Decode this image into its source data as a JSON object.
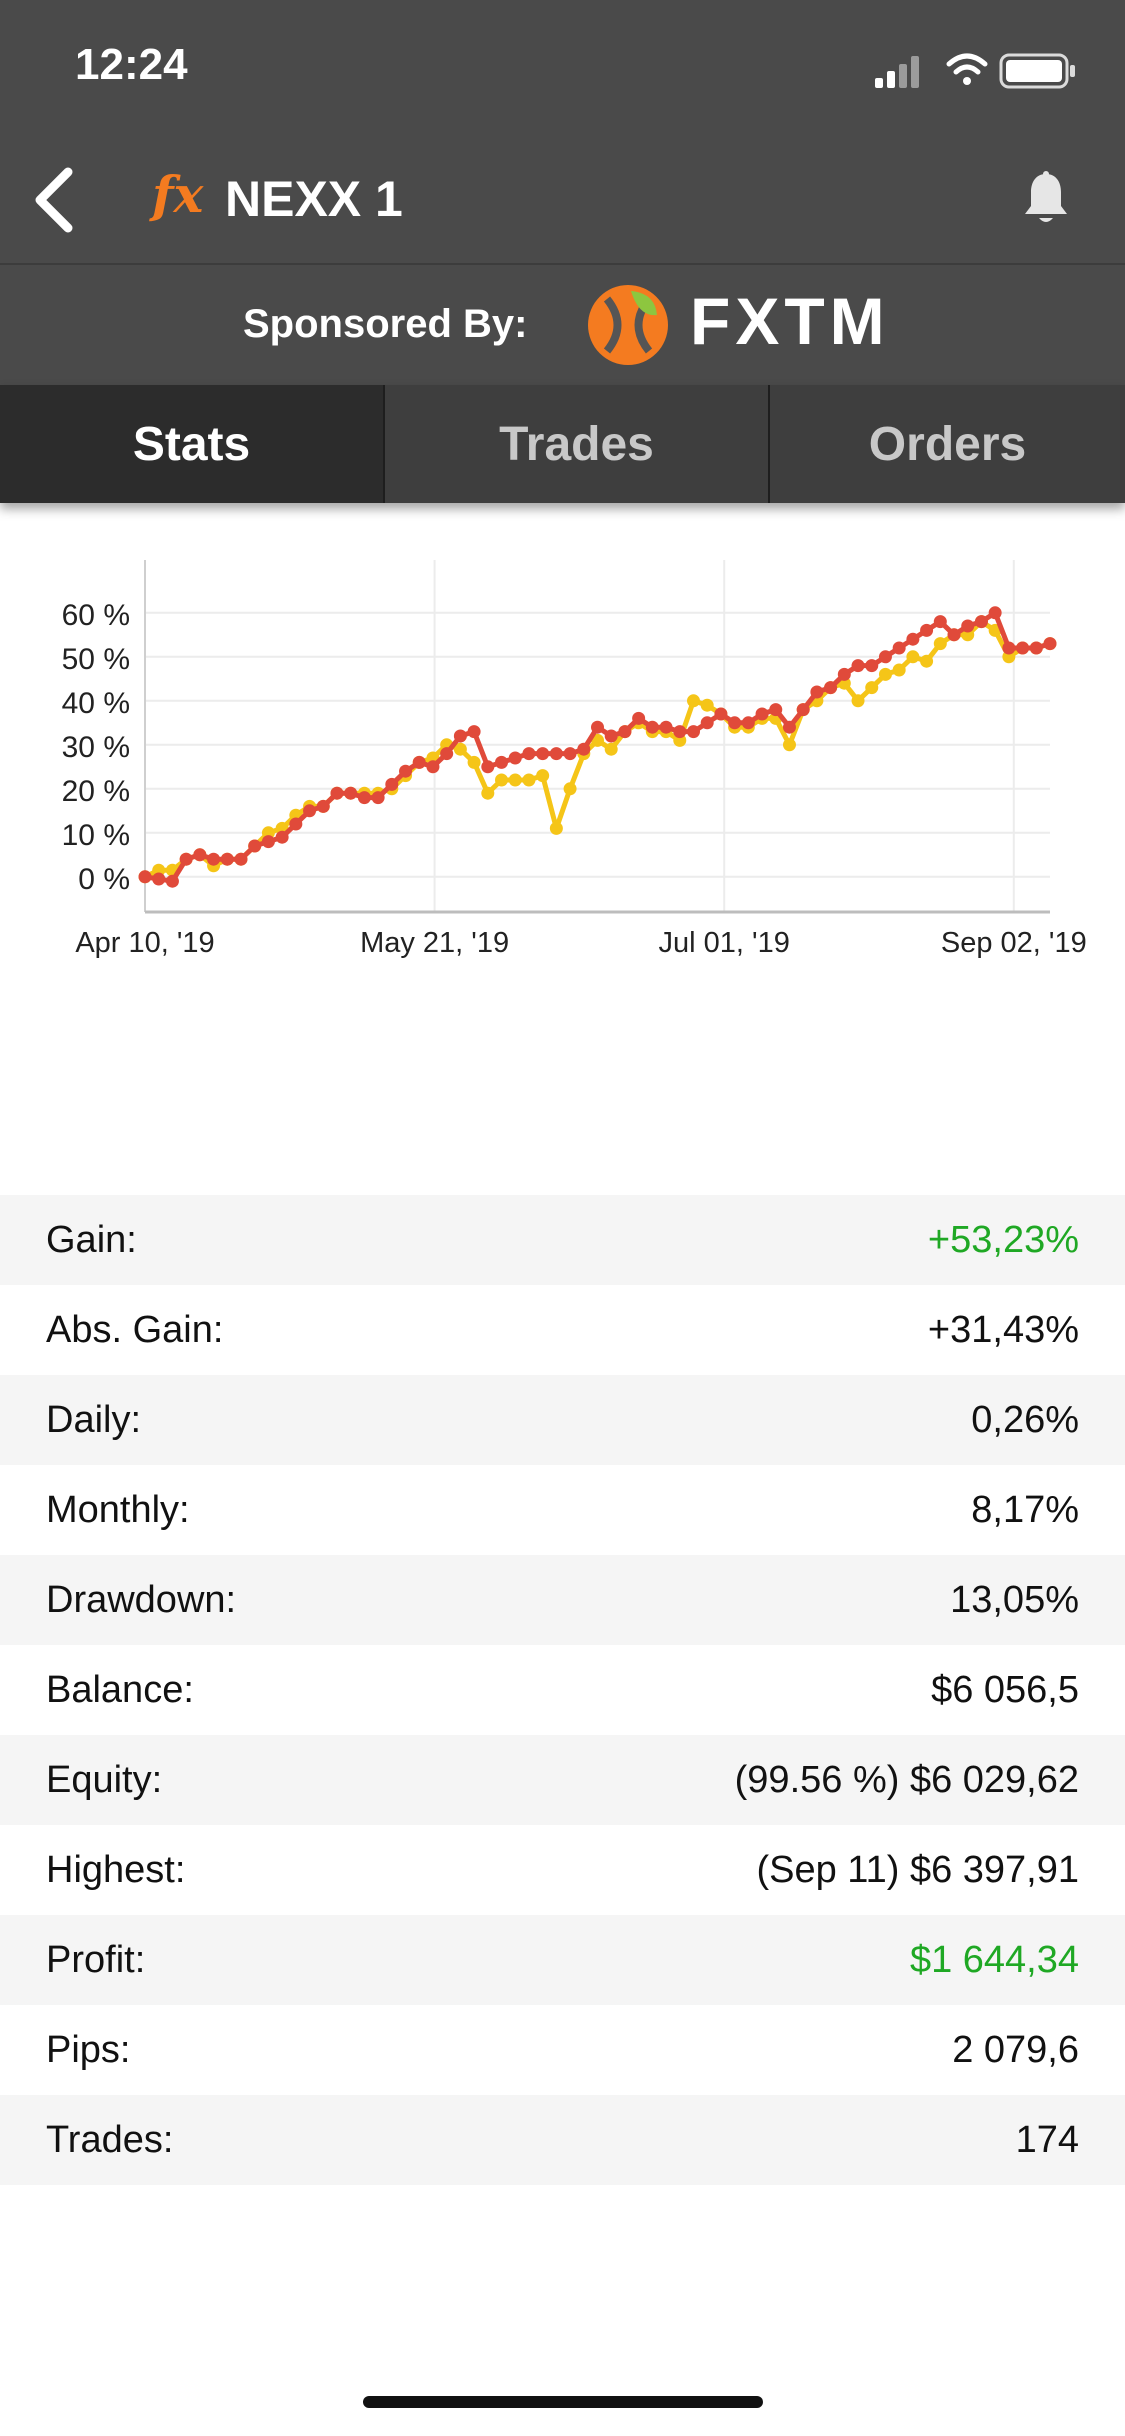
{
  "status": {
    "time": "12:24"
  },
  "nav": {
    "title": "NEXX 1",
    "fx_logo": "fx",
    "back_icon": "chevron-left-icon",
    "bell_icon": "bell-icon"
  },
  "sponsor": {
    "label": "Sponsored By:",
    "name": "FXTM"
  },
  "tabs": [
    {
      "label": "Stats"
    },
    {
      "label": "Trades"
    },
    {
      "label": "Orders"
    }
  ],
  "colors": {
    "header": "#4a4a4a",
    "series_red": "#e04a3a",
    "series_yellow": "#f5c518",
    "green": "#1fa824",
    "brand_orange": "#f47b20"
  },
  "chart_data": {
    "type": "line",
    "x_ticks": [
      "Apr 10, '19",
      "May 21, '19",
      "Jul 01, '19",
      "Sep 02, '19"
    ],
    "y_ticks": [
      "60 %",
      "50 %",
      "40 %",
      "30 %",
      "20 %",
      "10 %",
      "0 %"
    ],
    "ylim": [
      -8,
      72
    ],
    "grid": true,
    "series": [
      {
        "color": "#f5c518",
        "values": [
          0,
          1.5,
          1.5,
          4,
          5,
          2.5,
          4,
          4,
          7,
          10,
          11,
          14,
          16,
          16,
          19,
          19,
          19,
          19,
          20,
          23,
          26,
          27,
          30,
          29,
          26,
          19,
          22,
          22,
          22,
          23,
          11,
          20,
          28,
          31,
          29,
          33,
          35,
          33,
          33,
          31,
          40,
          39,
          37,
          34,
          34,
          36,
          36,
          30,
          38,
          40,
          43,
          44,
          40,
          43,
          46,
          47,
          50,
          49,
          53,
          55,
          55,
          58,
          56,
          50,
          52,
          52,
          53
        ]
      },
      {
        "color": "#e04a3a",
        "values": [
          0,
          -0.5,
          -1,
          4,
          5,
          4,
          4,
          4,
          7,
          8,
          9,
          12,
          15,
          16,
          19,
          19,
          18,
          18,
          21,
          24,
          26,
          25,
          28,
          32,
          33,
          25,
          26,
          27,
          28,
          28,
          28,
          28,
          29,
          34,
          32,
          33,
          36,
          34,
          34,
          33,
          33,
          35,
          37,
          35,
          35,
          37,
          38,
          34,
          38,
          42,
          43,
          46,
          48,
          48,
          50,
          52,
          54,
          56,
          58,
          55,
          57,
          58,
          60,
          52,
          52,
          52,
          53
        ]
      }
    ]
  },
  "stats": [
    {
      "label": "Gain:",
      "value": "+53,23%",
      "green": true
    },
    {
      "label": "Abs. Gain:",
      "value": "+31,43%",
      "green": false
    },
    {
      "label": "Daily:",
      "value": "0,26%",
      "green": false
    },
    {
      "label": "Monthly:",
      "value": "8,17%",
      "green": false
    },
    {
      "label": "Drawdown:",
      "value": "13,05%",
      "green": false
    },
    {
      "label": "Balance:",
      "value": "$6 056,5",
      "green": false
    },
    {
      "label": "Equity:",
      "value": "(99.56 %) $6 029,62",
      "green": false
    },
    {
      "label": "Highest:",
      "value": "(Sep 11) $6 397,91",
      "green": false
    },
    {
      "label": "Profit:",
      "value": "$1 644,34",
      "green": true
    },
    {
      "label": "Pips:",
      "value": "2 079,6",
      "green": false
    },
    {
      "label": "Trades:",
      "value": "174",
      "green": false
    }
  ]
}
